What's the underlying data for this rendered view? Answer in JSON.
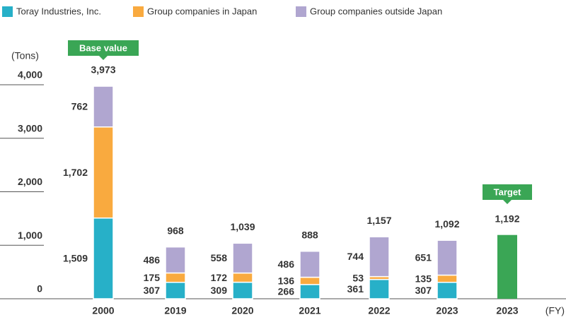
{
  "chart_data": {
    "type": "stacked_bar",
    "unit_label": "(Tons)",
    "x_unit_label": "(FY)",
    "categories": [
      "2000",
      "2019",
      "2020",
      "2021",
      "2022",
      "2023",
      "2023"
    ],
    "series": [
      {
        "name": "Toray Industries, Inc.",
        "color": "#27b0c8",
        "values": [
          1509,
          307,
          309,
          266,
          361,
          307,
          null
        ],
        "value_labels": [
          "1,509",
          "307",
          "309",
          "266",
          "361",
          "307",
          null
        ]
      },
      {
        "name": "Group companies in Japan",
        "color": "#f9aa3f",
        "values": [
          1702,
          175,
          172,
          136,
          53,
          135,
          null
        ],
        "value_labels": [
          "1,702",
          "175",
          "172",
          "136",
          "53",
          "135",
          null
        ]
      },
      {
        "name": "Group companies outside Japan",
        "color": "#b0a6d0",
        "values": [
          762,
          486,
          558,
          486,
          744,
          651,
          null
        ],
        "value_labels": [
          "762",
          "486",
          "558",
          "486",
          "744",
          "651",
          null
        ]
      }
    ],
    "totals": [
      3973,
      968,
      1039,
      888,
      1157,
      1092,
      null
    ],
    "total_labels": [
      "3,973",
      "968",
      "1,039",
      "888",
      "1,157",
      "1,092",
      null
    ],
    "target": {
      "label": "Target",
      "value": 1192,
      "value_label": "1,192",
      "color": "#3aa655"
    },
    "annotations": [
      {
        "text": "Base value",
        "category": 0,
        "color": "#3aa655"
      }
    ],
    "ylim": [
      0,
      4000
    ],
    "yticks": [
      0,
      {
        "value": 1000,
        "label": "1,000"
      },
      {
        "value": 2000,
        "label": "2,000"
      },
      {
        "value": 3000,
        "label": "3,000"
      },
      {
        "value": 4000,
        "label": "4,000"
      }
    ]
  }
}
